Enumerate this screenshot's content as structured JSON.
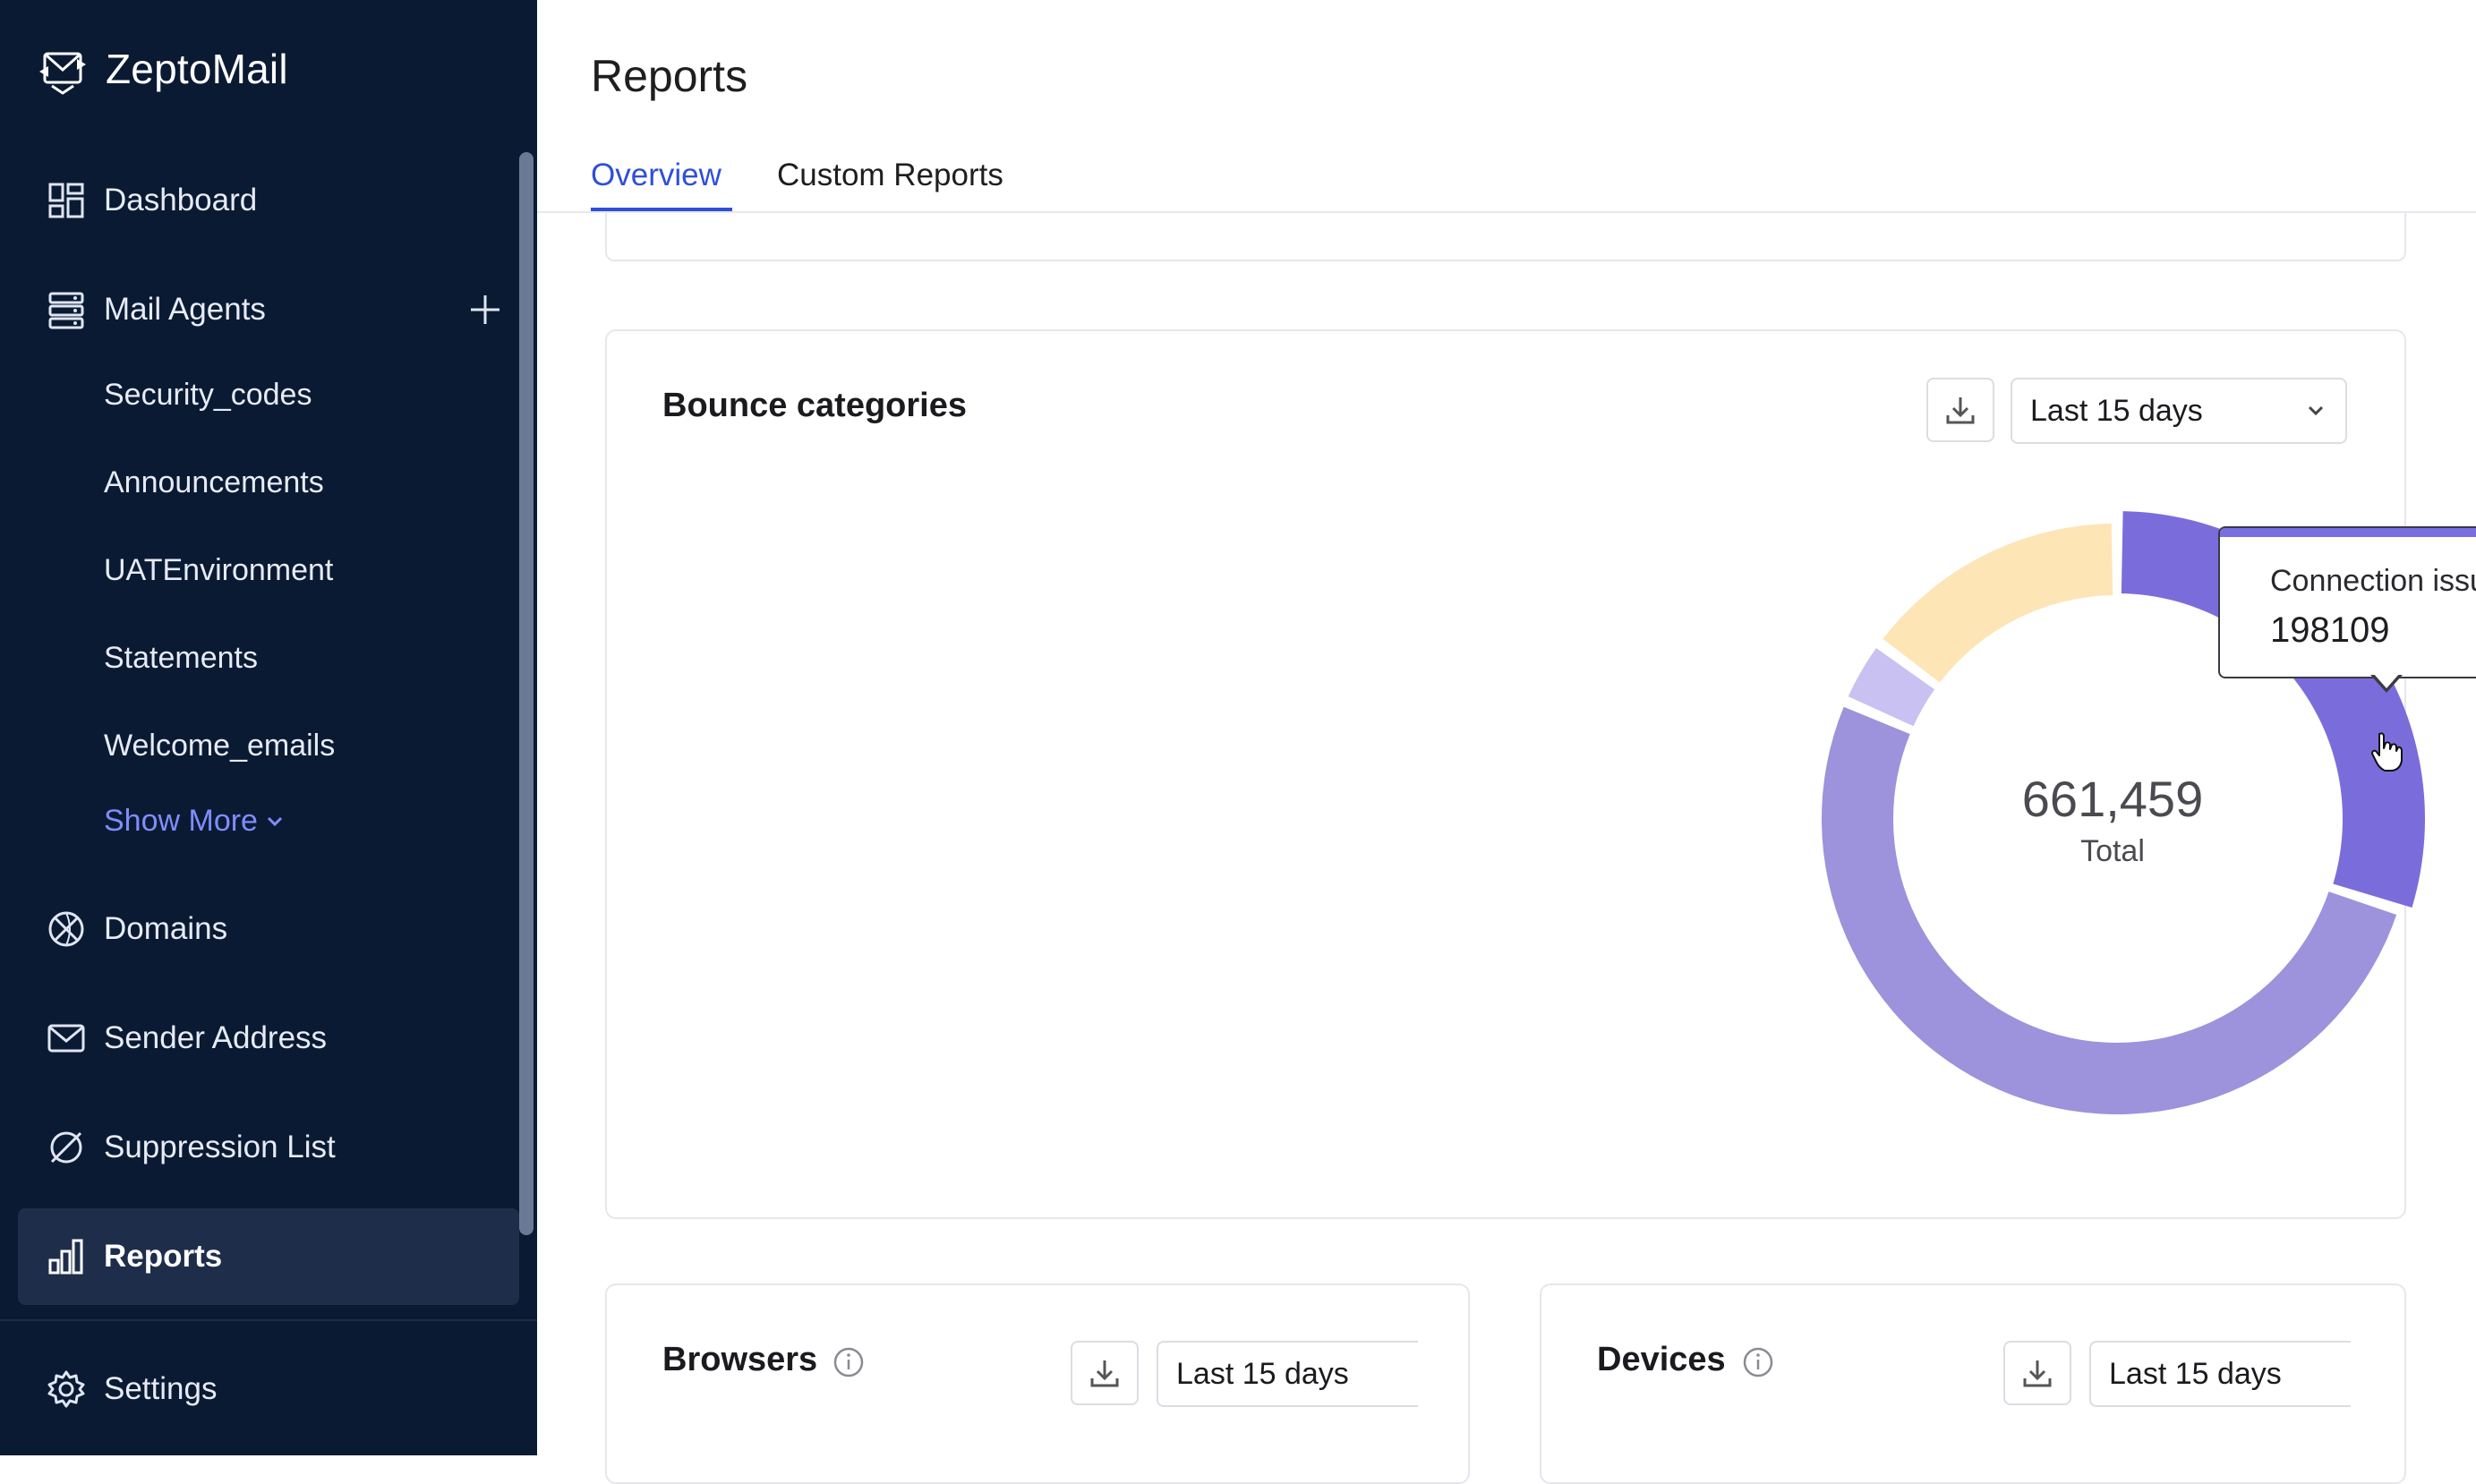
{
  "app": {
    "brand": "ZeptoMail"
  },
  "sidebar": {
    "items": [
      {
        "label": "Dashboard",
        "icon": "dashboard-icon"
      },
      {
        "label": "Mail Agents",
        "icon": "mail-agents-icon"
      },
      {
        "label": "Domains",
        "icon": "domains-icon"
      },
      {
        "label": "Sender Address",
        "icon": "envelope-icon"
      },
      {
        "label": "Suppression List",
        "icon": "block-icon"
      },
      {
        "label": "Reports",
        "icon": "bar-chart-icon",
        "active": true
      },
      {
        "label": "Settings",
        "icon": "gear-icon"
      }
    ],
    "mail_agents": [
      "Security_codes",
      "Announcements",
      "UATEnvironment",
      "Statements",
      "Welcome_emails"
    ],
    "show_more": "Show More"
  },
  "page": {
    "title": "Reports",
    "tabs": [
      "Overview",
      "Custom Reports"
    ],
    "active_tab": "Overview"
  },
  "bounce_card": {
    "title": "Bounce categories",
    "period": "Last 15 days",
    "total": "661,459",
    "total_label": "Total",
    "tooltip": {
      "label": "Connection issues",
      "value": "198109"
    }
  },
  "browsers_card": {
    "title": "Browsers",
    "period": "Last 15 days"
  },
  "devices_card": {
    "title": "Devices",
    "period": "Last 15 days"
  },
  "colors": {
    "sidebar_bg": "#0b1a33",
    "accent": "#2f4fd8",
    "show_more": "#7f8dff",
    "donut": [
      "#7a6ddb",
      "#9d92dc",
      "#c9c1f1",
      "#fde5b6"
    ]
  },
  "chart_data": {
    "type": "pie",
    "categories": [
      "Connection issues",
      "",
      "",
      ""
    ],
    "values": [
      198109,
      341000,
      24000,
      98350
    ],
    "colors": [
      "#7a6ddb",
      "#9d92dc",
      "#c9c1f1",
      "#fde5b6"
    ],
    "total": 661459,
    "highlight": "Connection issues"
  }
}
